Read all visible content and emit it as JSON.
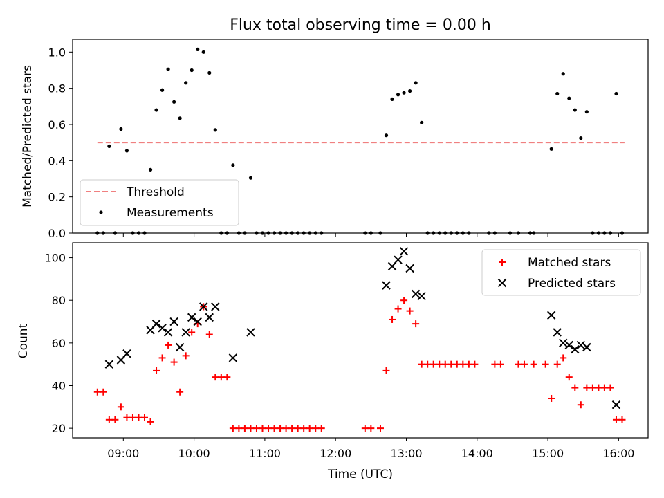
{
  "chart_data": [
    {
      "type": "scatter",
      "title": "Flux total observing time = 0.00 h",
      "ylabel": "Matched/Predicted stars",
      "ylim": [
        0,
        1.07
      ],
      "yticks": [
        "0.0",
        "0.2",
        "0.4",
        "0.6",
        "0.8",
        "1.0"
      ],
      "legend_position": "lower-left",
      "threshold": {
        "name": "Threshold",
        "value": 0.5,
        "x_range": [
          "08:38",
          "16:05"
        ],
        "color": "#f08080"
      },
      "series": [
        {
          "name": "Measurements",
          "color": "#000000",
          "points": [
            [
              "08:38",
              0.0
            ],
            [
              "08:43",
              0.0
            ],
            [
              "08:48",
              0.48
            ],
            [
              "08:53",
              0.0
            ],
            [
              "08:58",
              0.575
            ],
            [
              "09:03",
              0.455
            ],
            [
              "09:08",
              0.0
            ],
            [
              "09:13",
              0.0
            ],
            [
              "09:18",
              0.0
            ],
            [
              "09:23",
              0.35
            ],
            [
              "09:28",
              0.68
            ],
            [
              "09:33",
              0.79
            ],
            [
              "09:38",
              0.905
            ],
            [
              "09:43",
              0.725
            ],
            [
              "09:48",
              0.635
            ],
            [
              "09:53",
              0.83
            ],
            [
              "09:58",
              0.9
            ],
            [
              "10:03",
              1.015
            ],
            [
              "10:08",
              1.0
            ],
            [
              "10:13",
              0.885
            ],
            [
              "10:18",
              0.57
            ],
            [
              "10:23",
              0.0
            ],
            [
              "10:28",
              0.0
            ],
            [
              "10:33",
              0.375
            ],
            [
              "10:38",
              0.0
            ],
            [
              "10:43",
              0.0
            ],
            [
              "10:48",
              0.305
            ],
            [
              "10:53",
              0.0
            ],
            [
              "10:58",
              0.0
            ],
            [
              "11:03",
              0.0
            ],
            [
              "11:08",
              0.0
            ],
            [
              "11:13",
              0.0
            ],
            [
              "11:18",
              0.0
            ],
            [
              "11:23",
              0.0
            ],
            [
              "11:28",
              0.0
            ],
            [
              "11:33",
              0.0
            ],
            [
              "11:38",
              0.0
            ],
            [
              "11:43",
              0.0
            ],
            [
              "11:48",
              0.0
            ],
            [
              "12:25",
              0.0
            ],
            [
              "12:30",
              0.0
            ],
            [
              "12:38",
              0.0
            ],
            [
              "12:43",
              0.54
            ],
            [
              "12:48",
              0.74
            ],
            [
              "12:53",
              0.765
            ],
            [
              "12:58",
              0.775
            ],
            [
              "13:03",
              0.785
            ],
            [
              "13:08",
              0.83
            ],
            [
              "13:13",
              0.61
            ],
            [
              "13:18",
              0.0
            ],
            [
              "13:23",
              0.0
            ],
            [
              "13:28",
              0.0
            ],
            [
              "13:33",
              0.0
            ],
            [
              "13:38",
              0.0
            ],
            [
              "13:43",
              0.0
            ],
            [
              "13:48",
              0.0
            ],
            [
              "13:53",
              0.0
            ],
            [
              "14:10",
              0.0
            ],
            [
              "14:15",
              0.0
            ],
            [
              "14:28",
              0.0
            ],
            [
              "14:35",
              0.0
            ],
            [
              "14:45",
              0.0
            ],
            [
              "14:48",
              0.0
            ],
            [
              "15:03",
              0.465
            ],
            [
              "15:08",
              0.77
            ],
            [
              "15:13",
              0.88
            ],
            [
              "15:18",
              0.745
            ],
            [
              "15:23",
              0.68
            ],
            [
              "15:28",
              0.525
            ],
            [
              "15:33",
              0.67
            ],
            [
              "15:38",
              0.0
            ],
            [
              "15:43",
              0.0
            ],
            [
              "15:48",
              0.0
            ],
            [
              "15:53",
              0.0
            ],
            [
              "15:58",
              0.77
            ],
            [
              "16:03",
              0.0
            ]
          ]
        }
      ]
    },
    {
      "type": "scatter",
      "xlabel": "Time (UTC)",
      "ylabel": "Count",
      "xlim": [
        "08:17",
        "16:25"
      ],
      "ylim": [
        15.5,
        107
      ],
      "xticks": [
        "09:00",
        "10:00",
        "11:00",
        "12:00",
        "13:00",
        "14:00",
        "15:00",
        "16:00"
      ],
      "yticks": [
        "20",
        "40",
        "60",
        "80",
        "100"
      ],
      "legend_position": "top-right",
      "series": [
        {
          "name": "Matched stars",
          "marker": "plus",
          "color": "#ff0000",
          "points": [
            [
              "08:38",
              37
            ],
            [
              "08:43",
              37
            ],
            [
              "08:48",
              24
            ],
            [
              "08:53",
              24
            ],
            [
              "08:58",
              30
            ],
            [
              "09:03",
              25
            ],
            [
              "09:08",
              25
            ],
            [
              "09:13",
              25
            ],
            [
              "09:18",
              25
            ],
            [
              "09:23",
              23
            ],
            [
              "09:28",
              47
            ],
            [
              "09:33",
              53
            ],
            [
              "09:38",
              59
            ],
            [
              "09:43",
              51
            ],
            [
              "09:48",
              37
            ],
            [
              "09:53",
              54
            ],
            [
              "09:58",
              65
            ],
            [
              "10:03",
              69
            ],
            [
              "10:08",
              77
            ],
            [
              "10:13",
              64
            ],
            [
              "10:18",
              44
            ],
            [
              "10:23",
              44
            ],
            [
              "10:28",
              44
            ],
            [
              "10:33",
              20
            ],
            [
              "10:38",
              20
            ],
            [
              "10:43",
              20
            ],
            [
              "10:48",
              20
            ],
            [
              "10:53",
              20
            ],
            [
              "10:58",
              20
            ],
            [
              "11:03",
              20
            ],
            [
              "11:08",
              20
            ],
            [
              "11:13",
              20
            ],
            [
              "11:18",
              20
            ],
            [
              "11:23",
              20
            ],
            [
              "11:28",
              20
            ],
            [
              "11:33",
              20
            ],
            [
              "11:38",
              20
            ],
            [
              "11:43",
              20
            ],
            [
              "11:48",
              20
            ],
            [
              "12:25",
              20
            ],
            [
              "12:30",
              20
            ],
            [
              "12:38",
              20
            ],
            [
              "12:43",
              47
            ],
            [
              "12:48",
              71
            ],
            [
              "12:53",
              76
            ],
            [
              "12:58",
              80
            ],
            [
              "13:03",
              75
            ],
            [
              "13:08",
              69
            ],
            [
              "13:13",
              50
            ],
            [
              "13:18",
              50
            ],
            [
              "13:23",
              50
            ],
            [
              "13:28",
              50
            ],
            [
              "13:33",
              50
            ],
            [
              "13:38",
              50
            ],
            [
              "13:43",
              50
            ],
            [
              "13:48",
              50
            ],
            [
              "13:53",
              50
            ],
            [
              "13:58",
              50
            ],
            [
              "14:15",
              50
            ],
            [
              "14:20",
              50
            ],
            [
              "14:35",
              50
            ],
            [
              "14:40",
              50
            ],
            [
              "14:48",
              50
            ],
            [
              "14:58",
              50
            ],
            [
              "15:03",
              34
            ],
            [
              "15:08",
              50
            ],
            [
              "15:13",
              53
            ],
            [
              "15:18",
              44
            ],
            [
              "15:23",
              39
            ],
            [
              "15:28",
              31
            ],
            [
              "15:33",
              39
            ],
            [
              "15:38",
              39
            ],
            [
              "15:43",
              39
            ],
            [
              "15:48",
              39
            ],
            [
              "15:53",
              39
            ],
            [
              "15:58",
              24
            ],
            [
              "16:03",
              24
            ]
          ]
        },
        {
          "name": "Predicted stars",
          "marker": "x",
          "color": "#000000",
          "points": [
            [
              "08:48",
              50
            ],
            [
              "08:58",
              52
            ],
            [
              "09:03",
              55
            ],
            [
              "09:23",
              66
            ],
            [
              "09:28",
              69
            ],
            [
              "09:33",
              67
            ],
            [
              "09:38",
              65
            ],
            [
              "09:43",
              70
            ],
            [
              "09:48",
              58
            ],
            [
              "09:53",
              65
            ],
            [
              "09:58",
              72
            ],
            [
              "10:03",
              70
            ],
            [
              "10:08",
              77
            ],
            [
              "10:13",
              72
            ],
            [
              "10:18",
              77
            ],
            [
              "10:33",
              53
            ],
            [
              "10:48",
              65
            ],
            [
              "12:43",
              87
            ],
            [
              "12:48",
              96
            ],
            [
              "12:53",
              99
            ],
            [
              "12:58",
              103
            ],
            [
              "13:03",
              95
            ],
            [
              "13:08",
              83
            ],
            [
              "13:13",
              82
            ],
            [
              "15:03",
              73
            ],
            [
              "15:08",
              65
            ],
            [
              "15:13",
              60
            ],
            [
              "15:18",
              59
            ],
            [
              "15:23",
              57
            ],
            [
              "15:28",
              59
            ],
            [
              "15:33",
              58
            ],
            [
              "15:58",
              31
            ]
          ]
        }
      ]
    }
  ]
}
